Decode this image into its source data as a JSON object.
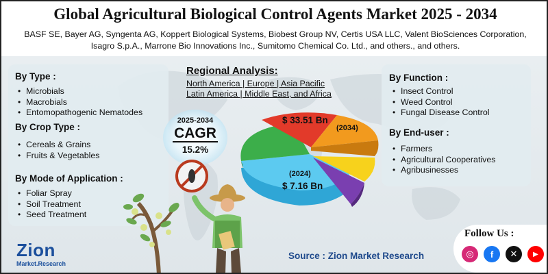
{
  "title": "Global Agricultural Biological Control Agents Market 2025 - 2034",
  "companies": {
    "line1": "BASF SE, Bayer AG, Syngenta AG, Koppert Biological Systems, Biobest Group NV, Certis USA LLC, Valent BioSciences Corporation,",
    "line2": "Isagro S.p.A., Marrone Bio Innovations Inc., Sumitomo Chemical Co. Ltd., and others., and others."
  },
  "by_type": {
    "heading": "By Type  :",
    "items": [
      "Microbials",
      "Macrobials",
      "Entomopathogenic Nematodes"
    ]
  },
  "by_crop_type": {
    "heading": "By Crop Type :",
    "items": [
      "Cereals & Grains",
      "Fruits & Vegetables"
    ]
  },
  "by_mode": {
    "heading": "By Mode of Application :",
    "items": [
      "Foliar Spray",
      "Soil Treatment",
      "Seed Treatment"
    ]
  },
  "regional": {
    "heading": "Regional Analysis:",
    "line1": "North America | Europe | Asia Pacific",
    "line2": "Latin America | Middle East, and Africa"
  },
  "cagr": {
    "years": "2025-2034",
    "label": "CAGR",
    "value": "15.2%"
  },
  "pie": {
    "value_2034": "$ 33.51 Bn",
    "year_2034": "(2034)",
    "year_2024": "(2024)",
    "value_2024": "$ 7.16 Bn",
    "colors": [
      "#e23a2a",
      "#f29a1e",
      "#f7d21c",
      "#7a3fb0",
      "#3db7e4",
      "#3cae4a"
    ]
  },
  "by_function": {
    "heading": "By Function :",
    "items": [
      "Insect Control",
      "Weed Control",
      "Fungal Disease Control"
    ]
  },
  "by_end_user": {
    "heading": "By End-user :",
    "items": [
      "Farmers",
      "Agricultural Cooperatives",
      "Agribusinesses"
    ]
  },
  "logo": {
    "name": "Zion",
    "sub": "Market.Research"
  },
  "source": "Source : Zion Market Research",
  "follow": {
    "label": "Follow Us :",
    "icons": [
      {
        "name": "instagram-icon",
        "glyph": "◎",
        "color": "#d62976"
      },
      {
        "name": "facebook-icon",
        "glyph": "f",
        "color": "#1877f2"
      },
      {
        "name": "x-icon",
        "glyph": "✕",
        "color": "#111111"
      },
      {
        "name": "youtube-icon",
        "glyph": "▶",
        "color": "#ff0000"
      }
    ]
  }
}
